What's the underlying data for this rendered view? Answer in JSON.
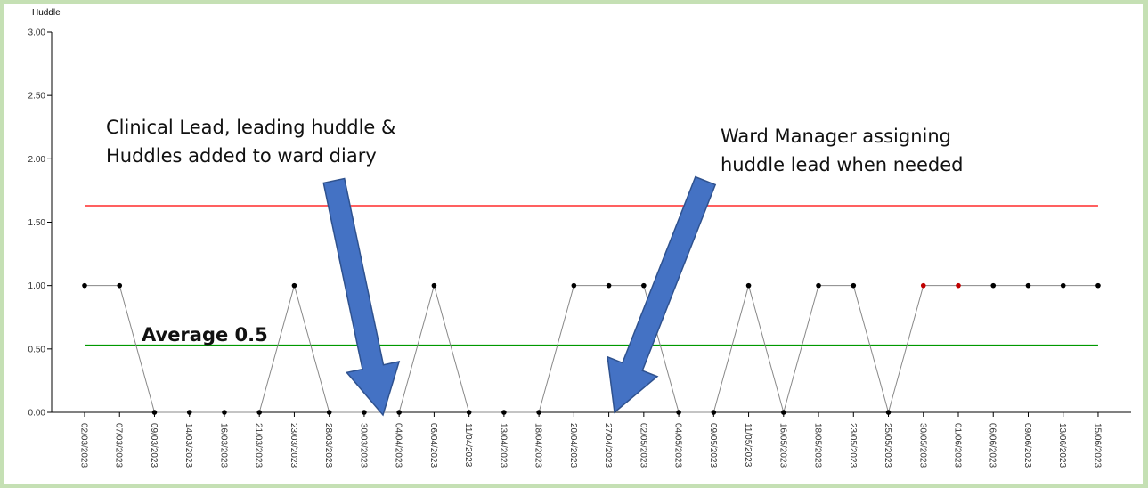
{
  "chart_data": {
    "type": "line",
    "y_label": "Huddle",
    "categories": [
      "02/03/2023",
      "07/03/2023",
      "09/03/2023",
      "14/03/2023",
      "16/03/2023",
      "21/03/2023",
      "23/03/2023",
      "28/03/2023",
      "30/03/2023",
      "04/04/2023",
      "06/04/2023",
      "11/04/2023",
      "13/04/2023",
      "18/04/2023",
      "20/04/2023",
      "27/04/2023",
      "02/05/2023",
      "04/05/2023",
      "09/05/2023",
      "11/05/2023",
      "16/05/2023",
      "18/05/2023",
      "23/05/2023",
      "25/05/2023",
      "30/05/2023",
      "01/06/2023",
      "06/06/2023",
      "09/06/2023",
      "13/06/2023",
      "15/06/2023"
    ],
    "series": [
      {
        "name": "Huddle",
        "color": "#888888",
        "values": [
          1,
          1,
          0,
          0,
          0,
          0,
          1,
          0,
          0,
          0,
          1,
          0,
          0,
          0,
          1,
          1,
          1,
          0,
          0,
          1,
          0,
          1,
          1,
          0,
          1,
          1,
          1,
          1,
          1,
          1
        ],
        "marker_colors": [
          "#000000",
          "#000000",
          "#000000",
          "#000000",
          "#000000",
          "#000000",
          "#000000",
          "#000000",
          "#000000",
          "#000000",
          "#000000",
          "#000000",
          "#000000",
          "#000000",
          "#000000",
          "#000000",
          "#000000",
          "#000000",
          "#000000",
          "#000000",
          "#000000",
          "#000000",
          "#000000",
          "#000000",
          "#c00000",
          "#c00000",
          "#000000",
          "#000000",
          "#000000",
          "#000000"
        ]
      }
    ],
    "upper_limit": {
      "value": 1.63,
      "color": "#ff0000"
    },
    "mean": {
      "value": 0.53,
      "color": "#009900"
    },
    "ylim": [
      0,
      3
    ],
    "yticks": [
      {
        "value": 0,
        "label": "0.00"
      },
      {
        "value": 0.5,
        "label": "0.50"
      },
      {
        "value": 1,
        "label": "1.00"
      },
      {
        "value": 1.5,
        "label": "1.50"
      },
      {
        "value": 2,
        "label": "2.00"
      },
      {
        "value": 2.5,
        "label": "2.50"
      },
      {
        "value": 3,
        "label": "3.00"
      }
    ],
    "annotations": [
      {
        "lines": [
          "Clinical Lead, leading huddle &",
          "Huddles added to ward diary"
        ]
      },
      {
        "lines": [
          "Ward Manager assigning",
          "huddle lead when needed"
        ]
      },
      {
        "lines": [
          "Average 0.5"
        ]
      }
    ]
  }
}
